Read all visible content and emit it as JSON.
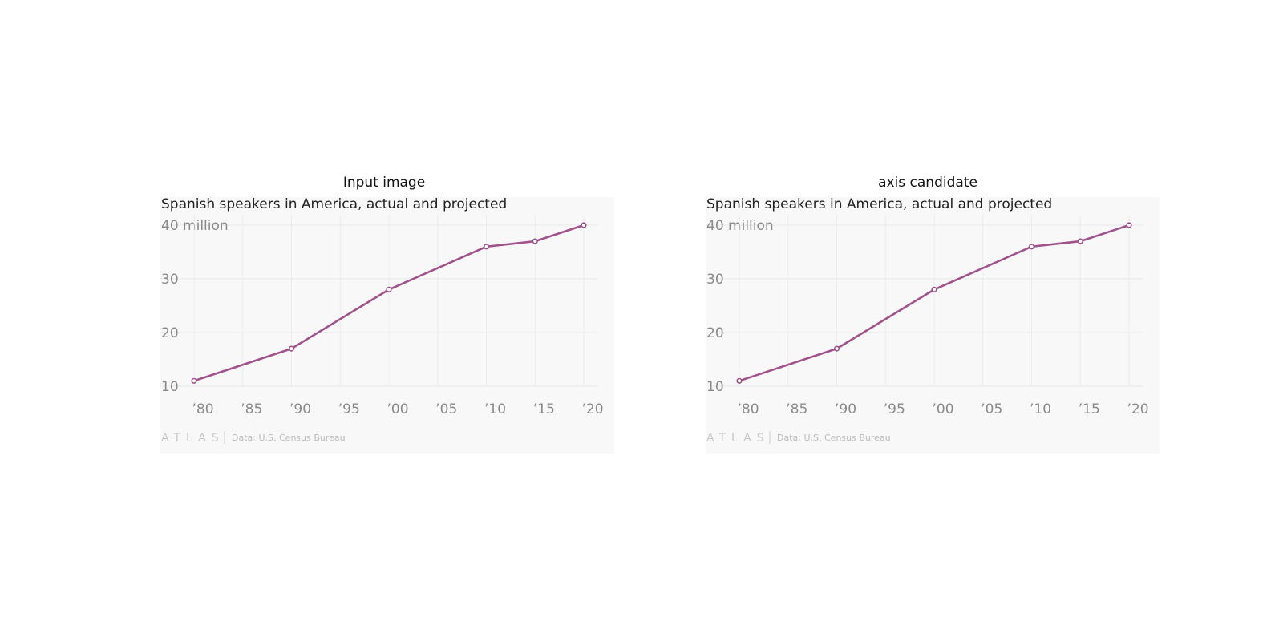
{
  "panels": [
    {
      "label": "Input image",
      "chart_data": {
        "type": "line",
        "title": "Spanish speakers in America, actual and projected",
        "y_top_label": "40 million",
        "x": [
          1980,
          1990,
          2000,
          2010,
          2015,
          2020
        ],
        "series": [
          {
            "values": [
              11,
              17,
              28,
              36,
              37,
              40
            ]
          }
        ],
        "xlim": [
          1980,
          2020
        ],
        "ylim": [
          10,
          40
        ],
        "x_ticks": [
          1980,
          1985,
          1990,
          1995,
          2000,
          2005,
          2010,
          2015,
          2020
        ],
        "x_tick_labels": [
          "’80",
          "’85",
          "’90",
          "’95",
          "’00",
          "’05",
          "’10",
          "’15",
          "’20"
        ],
        "y_ticks": [
          10,
          20,
          30,
          40
        ],
        "y_tick_labels": [
          "10",
          "20",
          "30",
          "40 million"
        ],
        "grid": true,
        "line_color": "#a0528a",
        "source": "Data: U.S. Census Bureau",
        "logo": "ATLAS"
      }
    },
    {
      "label": "axis candidate",
      "chart_data": {
        "type": "line",
        "title": "Spanish speakers in America, actual and projected",
        "y_top_label": "40 million",
        "x": [
          1980,
          1990,
          2000,
          2010,
          2015,
          2020
        ],
        "series": [
          {
            "values": [
              11,
              17,
              28,
              36,
              37,
              40
            ]
          }
        ],
        "xlim": [
          1980,
          2020
        ],
        "ylim": [
          10,
          40
        ],
        "x_ticks": [
          1980,
          1985,
          1990,
          1995,
          2000,
          2005,
          2010,
          2015,
          2020
        ],
        "x_tick_labels": [
          "’80",
          "’85",
          "’90",
          "’95",
          "’00",
          "’05",
          "’10",
          "’15",
          "’20"
        ],
        "y_ticks": [
          10,
          20,
          30,
          40
        ],
        "y_tick_labels": [
          "10",
          "20",
          "30",
          "40 million"
        ],
        "grid": true,
        "line_color": "#a0528a",
        "source": "Data: U.S. Census Bureau",
        "logo": "ATLAS"
      }
    }
  ]
}
